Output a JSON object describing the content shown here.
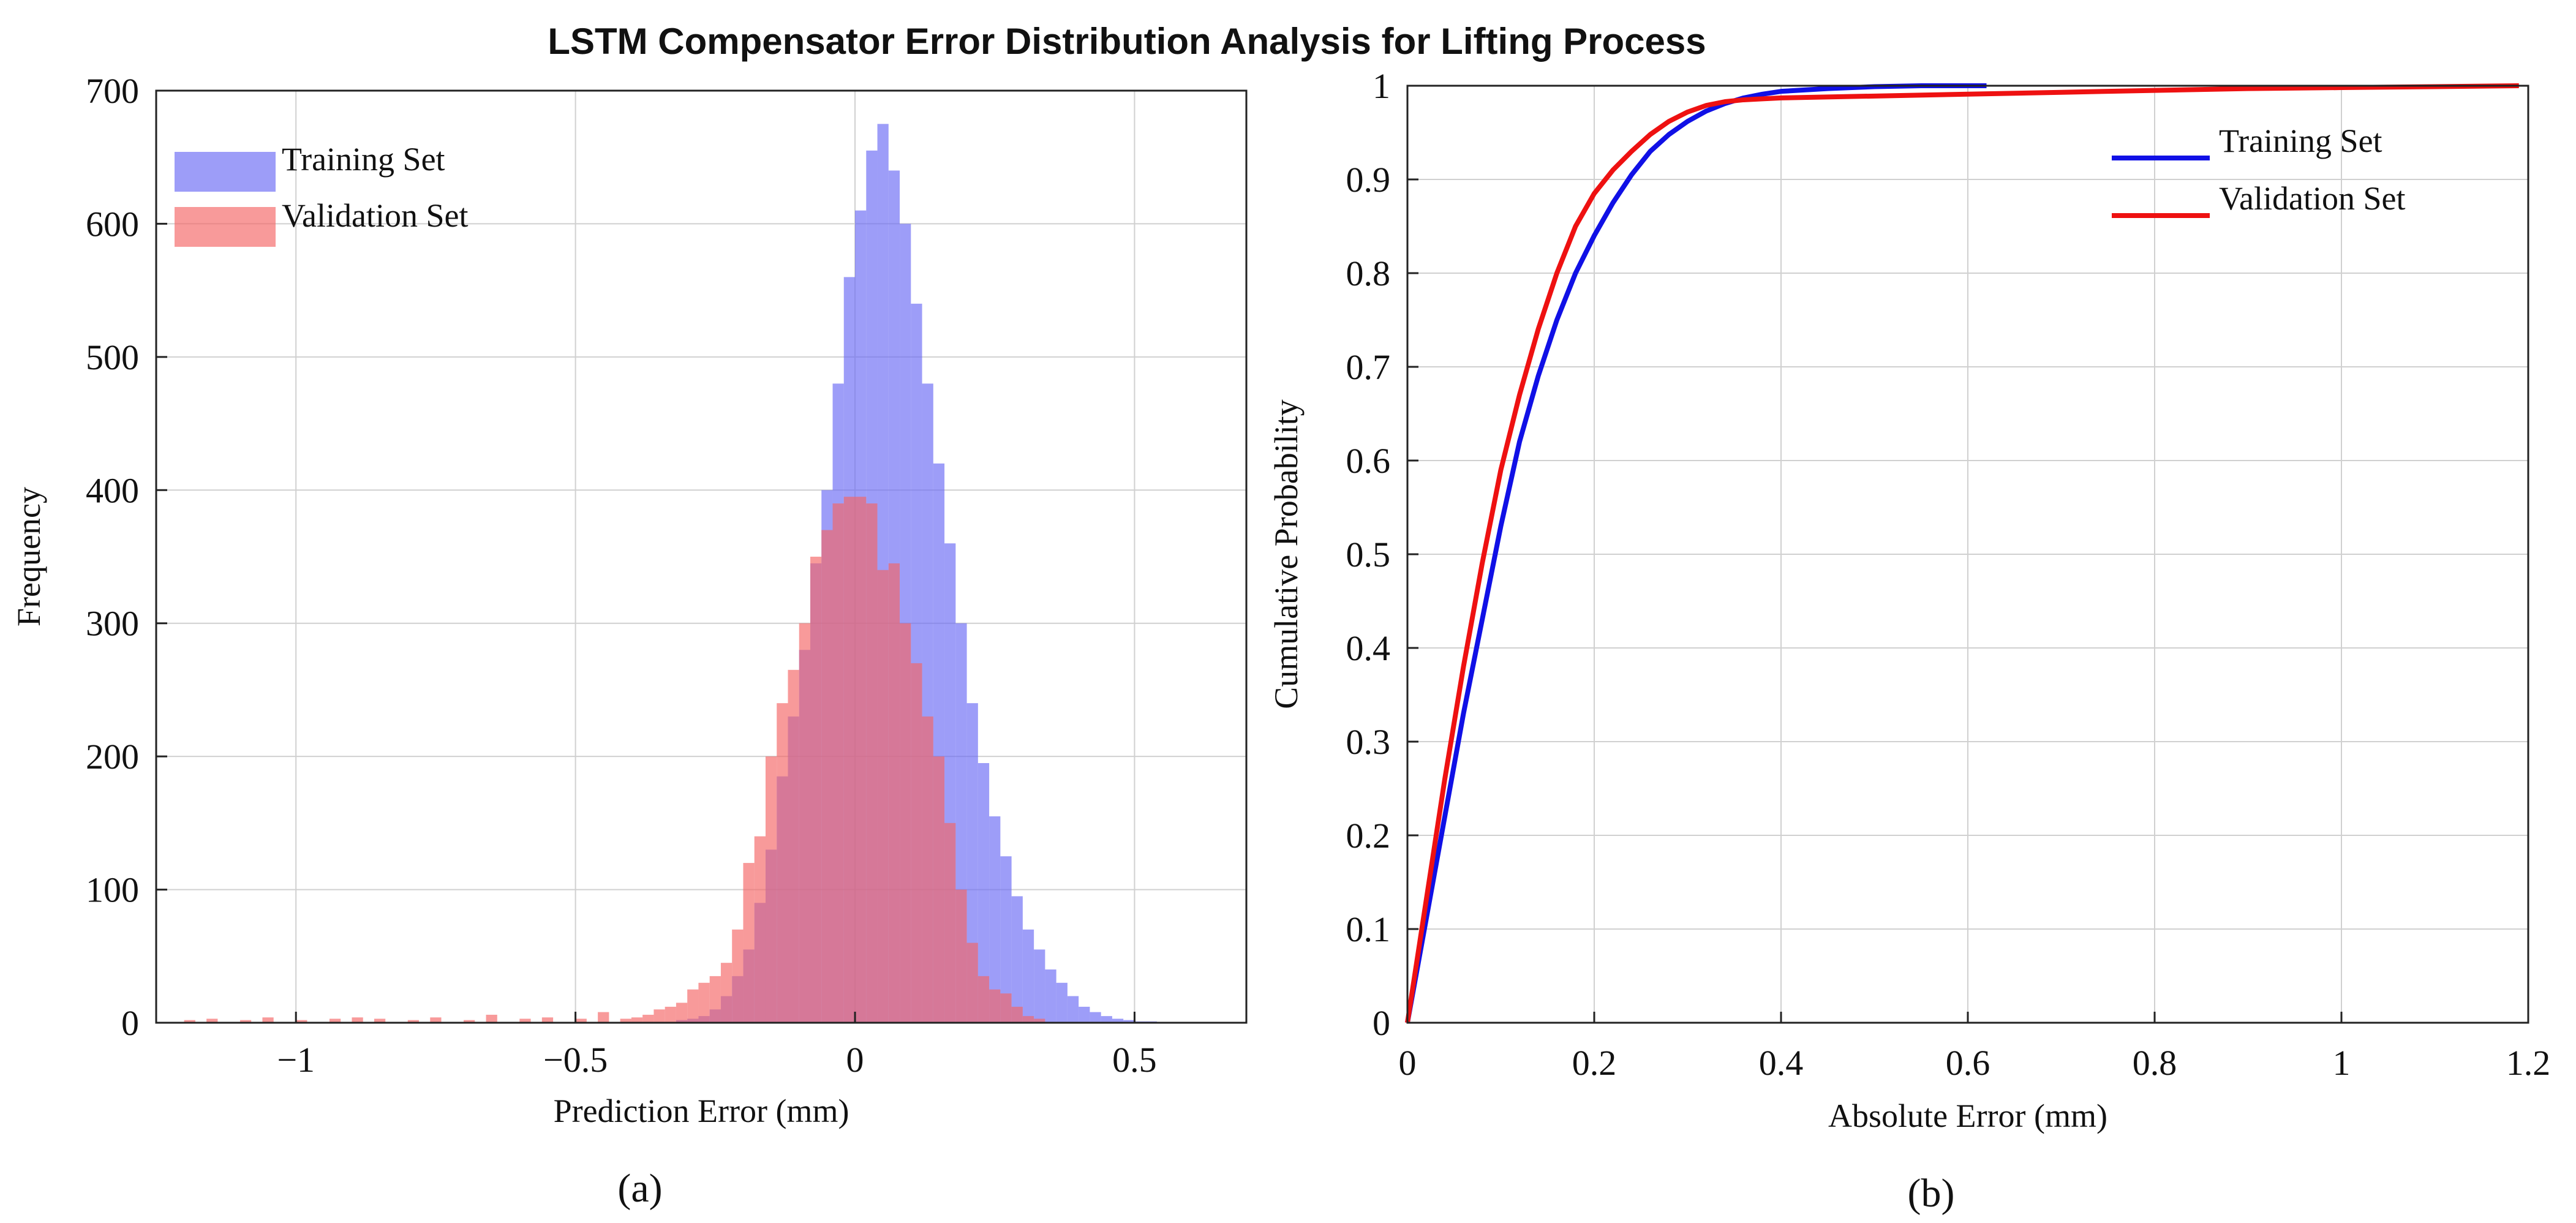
{
  "figure": {
    "title": "LSTM Compensator Error Distribution Analysis for Lifting Process"
  },
  "colors": {
    "training_hist": "#9b9bf7",
    "validation_hist": "#f99898",
    "overlap_hist": "#be5a90",
    "training_line": "#1010e6",
    "validation_line": "#ee1111",
    "grid": "#d0d0d0",
    "axis": "#222222"
  },
  "chart_data": [
    {
      "type": "bar",
      "panel_label": "(a)",
      "xlabel": "Prediction Error (mm)",
      "ylabel": "Frequency",
      "xlim": [
        -1.25,
        0.7
      ],
      "ylim": [
        0,
        700
      ],
      "xticks": [
        -1,
        -0.5,
        0,
        0.5
      ],
      "xtick_labels": [
        "−1",
        "−0.5",
        "0",
        "0.5"
      ],
      "yticks": [
        0,
        100,
        200,
        300,
        400,
        500,
        600,
        700
      ],
      "ytick_labels": [
        "0",
        "100",
        "200",
        "300",
        "400",
        "500",
        "600",
        "700"
      ],
      "grid": true,
      "legend_position": "top-left",
      "bin_width": 0.02,
      "series": [
        {
          "name": "Training Set",
          "bin_starts": [
            -0.32,
            -0.3,
            -0.28,
            -0.26,
            -0.24,
            -0.22,
            -0.2,
            -0.18,
            -0.16,
            -0.14,
            -0.12,
            -0.1,
            -0.08,
            -0.06,
            -0.04,
            -0.02,
            0.0,
            0.02,
            0.04,
            0.06,
            0.08,
            0.1,
            0.12,
            0.14,
            0.16,
            0.18,
            0.2,
            0.22,
            0.24,
            0.26,
            0.28,
            0.3,
            0.32,
            0.34,
            0.36,
            0.38,
            0.4,
            0.42,
            0.44,
            0.46,
            0.48,
            0.5,
            0.52,
            0.54
          ],
          "values": [
            2,
            3,
            5,
            10,
            20,
            35,
            55,
            90,
            130,
            185,
            230,
            280,
            345,
            400,
            480,
            560,
            610,
            655,
            675,
            640,
            600,
            540,
            480,
            420,
            360,
            300,
            240,
            195,
            155,
            125,
            95,
            70,
            55,
            40,
            30,
            20,
            12,
            8,
            5,
            3,
            2,
            1,
            1,
            0
          ]
        },
        {
          "name": "Validation Set",
          "bin_starts": [
            -1.2,
            -1.16,
            -1.1,
            -1.06,
            -1.0,
            -0.94,
            -0.9,
            -0.86,
            -0.8,
            -0.76,
            -0.7,
            -0.66,
            -0.6,
            -0.56,
            -0.5,
            -0.46,
            -0.42,
            -0.4,
            -0.38,
            -0.36,
            -0.34,
            -0.32,
            -0.3,
            -0.28,
            -0.26,
            -0.24,
            -0.22,
            -0.2,
            -0.18,
            -0.16,
            -0.14,
            -0.12,
            -0.1,
            -0.08,
            -0.06,
            -0.04,
            -0.02,
            0.0,
            0.02,
            0.04,
            0.06,
            0.08,
            0.1,
            0.12,
            0.14,
            0.16,
            0.18,
            0.2,
            0.22,
            0.24,
            0.26,
            0.28,
            0.3,
            0.32
          ],
          "values": [
            2,
            3,
            2,
            4,
            2,
            3,
            4,
            3,
            2,
            4,
            2,
            6,
            3,
            4,
            3,
            8,
            3,
            4,
            6,
            10,
            12,
            15,
            25,
            30,
            35,
            45,
            70,
            120,
            140,
            200,
            240,
            265,
            300,
            350,
            370,
            390,
            395,
            395,
            390,
            340,
            345,
            300,
            270,
            230,
            200,
            150,
            100,
            60,
            35,
            25,
            22,
            12,
            5,
            3
          ]
        }
      ]
    },
    {
      "type": "line",
      "panel_label": "(b)",
      "xlabel": "Absolute Error (mm)",
      "ylabel": "Cumulative Probability",
      "xlim": [
        0,
        1.2
      ],
      "ylim": [
        0,
        1
      ],
      "xticks": [
        0,
        0.2,
        0.4,
        0.6,
        0.8,
        1,
        1.2
      ],
      "xtick_labels": [
        "0",
        "0.2",
        "0.4",
        "0.6",
        "0.8",
        "1",
        "1.2"
      ],
      "yticks": [
        0,
        0.1,
        0.2,
        0.3,
        0.4,
        0.5,
        0.6,
        0.7,
        0.8,
        0.9,
        1
      ],
      "ytick_labels": [
        "0",
        "0.1",
        "0.2",
        "0.3",
        "0.4",
        "0.5",
        "0.6",
        "0.7",
        "0.8",
        "0.9",
        "1"
      ],
      "grid": true,
      "legend_position": "top-right",
      "series": [
        {
          "name": "Training Set",
          "x": [
            0,
            0.02,
            0.04,
            0.06,
            0.08,
            0.1,
            0.12,
            0.14,
            0.16,
            0.18,
            0.2,
            0.22,
            0.24,
            0.26,
            0.28,
            0.3,
            0.32,
            0.34,
            0.36,
            0.38,
            0.4,
            0.45,
            0.5,
            0.55,
            0.62
          ],
          "y": [
            0,
            0.11,
            0.22,
            0.33,
            0.43,
            0.53,
            0.62,
            0.69,
            0.75,
            0.8,
            0.84,
            0.875,
            0.905,
            0.93,
            0.948,
            0.962,
            0.973,
            0.981,
            0.987,
            0.991,
            0.994,
            0.997,
            0.999,
            1.0,
            1.0
          ]
        },
        {
          "name": "Validation Set",
          "x": [
            0,
            0.02,
            0.04,
            0.06,
            0.08,
            0.1,
            0.12,
            0.14,
            0.16,
            0.18,
            0.2,
            0.22,
            0.24,
            0.26,
            0.28,
            0.3,
            0.32,
            0.34,
            0.36,
            0.38,
            0.4,
            0.5,
            0.6,
            0.7,
            0.8,
            0.9,
            1.0,
            1.1,
            1.19
          ],
          "y": [
            0,
            0.13,
            0.26,
            0.38,
            0.49,
            0.59,
            0.67,
            0.74,
            0.8,
            0.85,
            0.885,
            0.91,
            0.93,
            0.948,
            0.962,
            0.972,
            0.979,
            0.983,
            0.985,
            0.986,
            0.987,
            0.989,
            0.991,
            0.993,
            0.995,
            0.997,
            0.998,
            0.999,
            1.0
          ]
        }
      ]
    }
  ]
}
